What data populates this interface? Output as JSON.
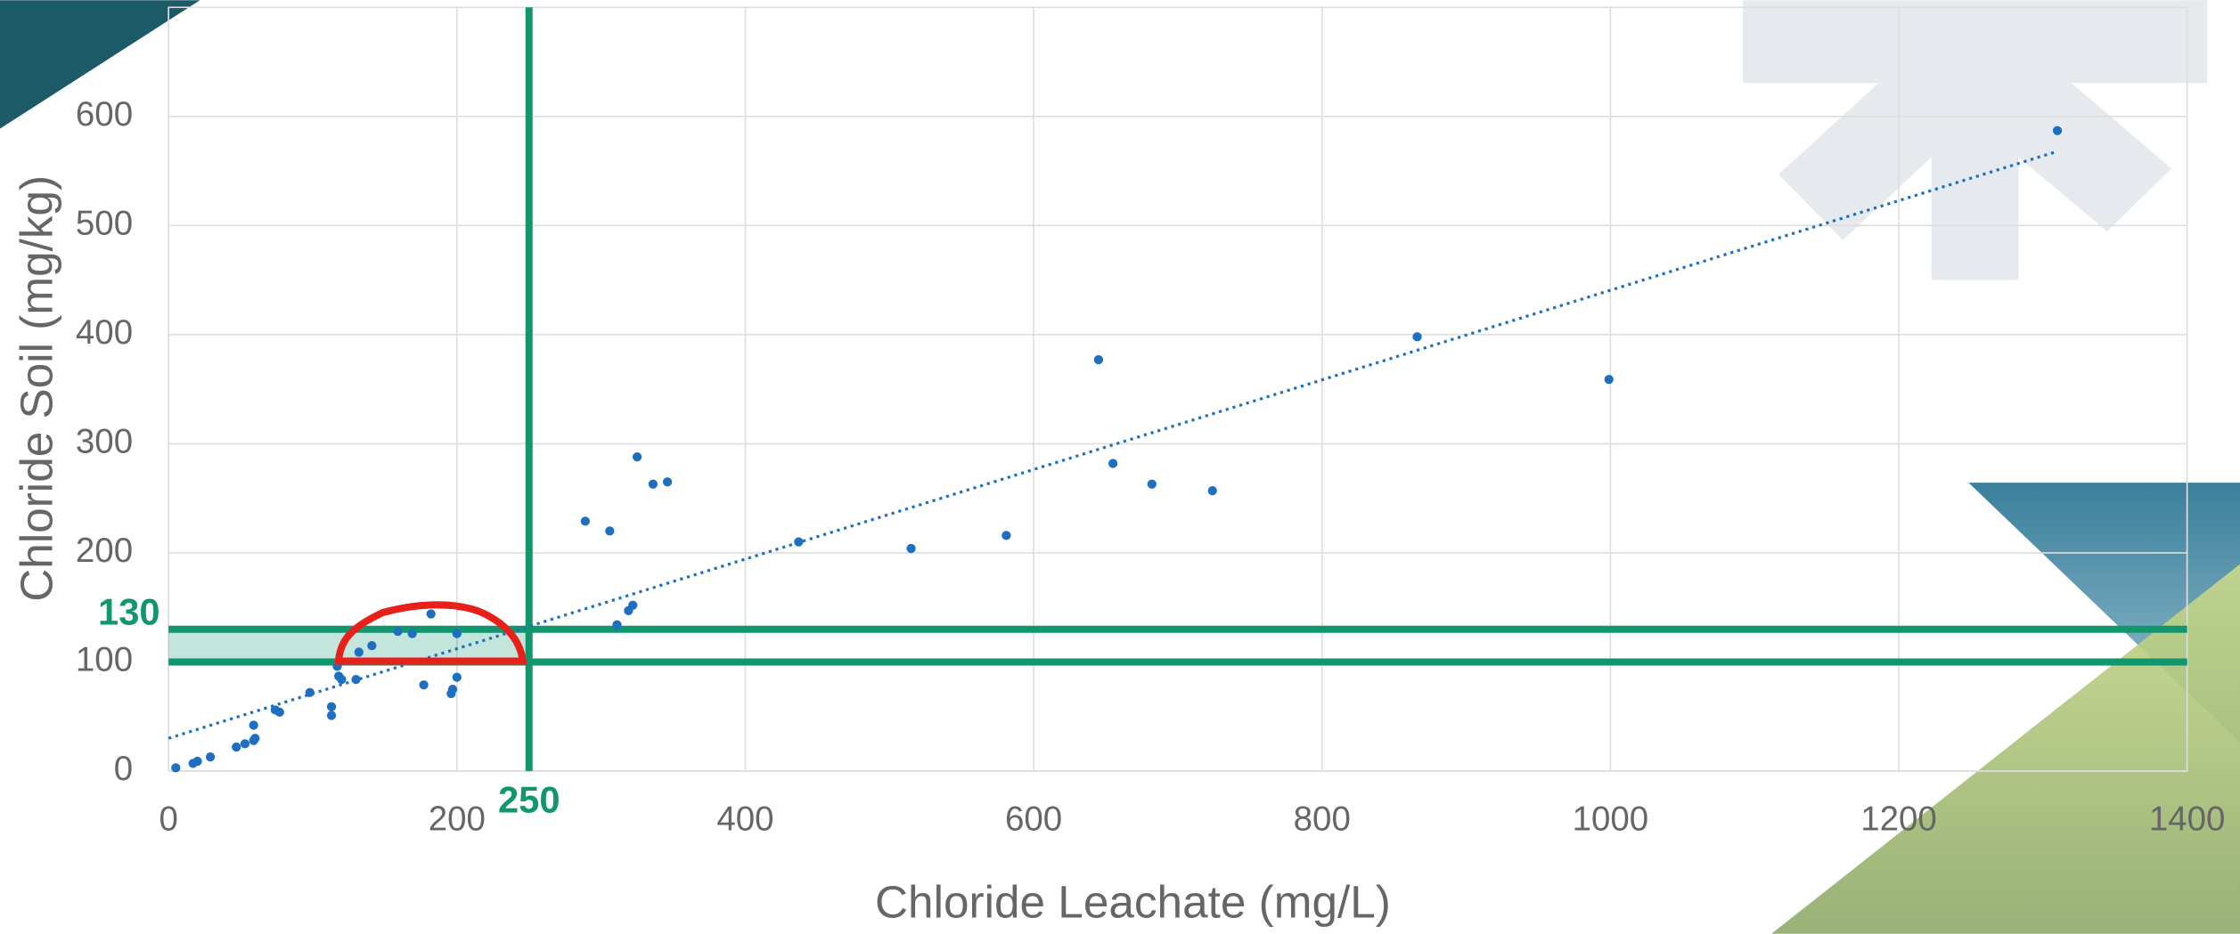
{
  "chart_data": {
    "type": "scatter",
    "x_label": "Chloride Leachate (mg/L)",
    "y_label": "Chloride Soil (mg/kg)",
    "xlim": [
      0,
      1400
    ],
    "xticks": [
      0,
      200,
      400,
      600,
      800,
      1000,
      1200,
      1400
    ],
    "ylim": [
      0,
      700
    ],
    "yticks": [
      0,
      100,
      200,
      300,
      400,
      500,
      600
    ],
    "grid": true,
    "points": {
      "color": "#1f6fc0",
      "x": [
        5,
        17,
        20,
        29,
        47,
        53,
        59,
        60,
        59,
        74,
        77,
        98,
        113,
        113,
        117,
        118,
        120,
        130,
        132,
        141,
        159,
        169,
        182,
        177,
        196,
        197,
        200,
        200,
        289,
        306,
        311,
        319,
        322,
        325,
        336,
        346,
        437,
        515,
        581,
        645,
        655,
        682,
        724,
        866,
        999,
        1310
      ],
      "y": [
        3,
        7,
        9,
        13,
        22,
        25,
        28,
        30,
        42,
        56,
        54,
        72,
        59,
        51,
        96,
        87,
        84,
        84,
        109,
        115,
        128,
        126,
        144,
        79,
        71,
        75,
        86,
        126,
        229,
        220,
        134,
        147,
        152,
        288,
        263,
        265,
        210,
        204,
        216,
        377,
        282,
        263,
        257,
        398,
        359,
        587
      ]
    },
    "trendline": {
      "color": "#1f6fc0",
      "x": [
        0,
        1310
      ],
      "y": [
        30,
        568
      ]
    },
    "reference_lines": [
      {
        "axis": "y",
        "value": 130,
        "label": "130"
      },
      {
        "axis": "y",
        "value": 100
      },
      {
        "axis": "x",
        "value": 250,
        "label": "250"
      }
    ],
    "reference_color": "#12966e"
  }
}
